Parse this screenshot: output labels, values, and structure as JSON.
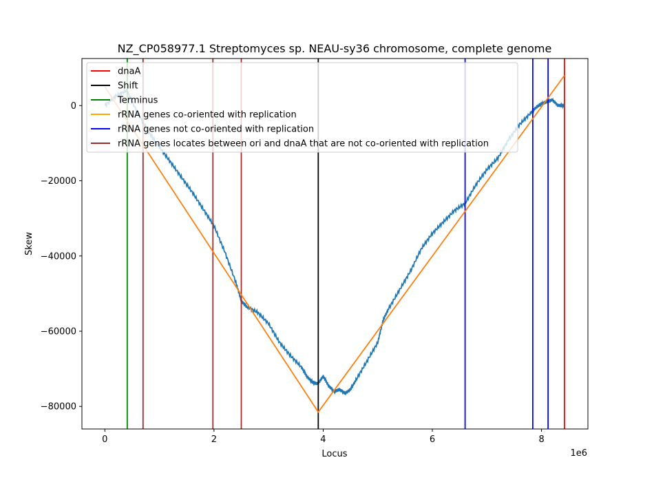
{
  "chart_data": {
    "type": "line",
    "title": "NZ_CP058977.1 Streptomyces sp. NEAU-sy36 chromosome, complete genome",
    "xlabel": "Locus",
    "ylabel": "Skew",
    "x_offset_label": "1e6",
    "xlim": [
      -420000,
      8850000
    ],
    "ylim": [
      -86000,
      12500
    ],
    "x_ticks": [
      0,
      2000000,
      4000000,
      6000000,
      8000000
    ],
    "x_tick_labels": [
      "0",
      "2",
      "4",
      "6",
      "8"
    ],
    "y_ticks": [
      0,
      -20000,
      -40000,
      -60000,
      -80000
    ],
    "y_tick_labels": [
      "0",
      "−20000",
      "−40000",
      "−60000",
      "−80000"
    ],
    "legend_position": "upper-left",
    "legend": [
      {
        "label": "dnaA",
        "color": "#ff0000"
      },
      {
        "label": "Shift",
        "color": "#000000"
      },
      {
        "label": "Terminus",
        "color": "#008000"
      },
      {
        "label": "rRNA genes co-oriented with replication",
        "color": "#ffa500"
      },
      {
        "label": "rRNA genes not co-oriented with replication",
        "color": "#0000ff"
      },
      {
        "label": "rRNA genes locates between ori and dnaA that are not co-oriented with replication",
        "color": "#a52a2a"
      }
    ],
    "skew_series": {
      "color": "#1f77b4",
      "x": [
        0,
        200000,
        400000,
        600000,
        800000,
        1000000,
        1200000,
        1400000,
        1600000,
        1800000,
        2000000,
        2200000,
        2400000,
        2500000,
        2600000,
        2800000,
        3000000,
        3200000,
        3400000,
        3600000,
        3700000,
        3800000,
        3900000,
        4000000,
        4100000,
        4200000,
        4300000,
        4400000,
        4500000,
        4600000,
        4800000,
        5000000,
        5100000,
        5200000,
        5400000,
        5600000,
        5800000,
        6000000,
        6200000,
        6400000,
        6600000,
        6800000,
        7000000,
        7200000,
        7400000,
        7600000,
        7800000,
        7900000,
        8000000,
        8100000,
        8200000,
        8300000,
        8420000
      ],
      "y": [
        0,
        2500,
        4000,
        -2000,
        -7000,
        -11000,
        -15000,
        -19000,
        -23000,
        -27500,
        -32000,
        -39000,
        -47000,
        -52000,
        -53500,
        -55000,
        -58000,
        -63000,
        -66500,
        -69500,
        -72000,
        -73500,
        -74000,
        -72000,
        -74500,
        -76000,
        -75500,
        -76500,
        -75500,
        -73000,
        -68000,
        -63000,
        -57000,
        -54000,
        -49000,
        -44000,
        -38000,
        -34000,
        -31000,
        -28000,
        -26000,
        -21000,
        -17000,
        -14000,
        -9000,
        -5000,
        -2000,
        -500,
        500,
        1000,
        1500,
        0,
        0
      ]
    },
    "fit_series": {
      "color": "#ff7f0e",
      "x": [
        0,
        3910000,
        8420000
      ],
      "y": [
        5000,
        -81500,
        8000
      ]
    },
    "vlines": [
      {
        "x": 8420000,
        "color": "#ff0000",
        "kind": "dnaA"
      },
      {
        "x": 3910000,
        "color": "#000000",
        "kind": "Shift"
      },
      {
        "x": 410000,
        "color": "#008000",
        "kind": "Terminus"
      },
      {
        "x": 6600000,
        "color": "#0000ff",
        "kind": "rRNA not co-oriented"
      },
      {
        "x": 7840000,
        "color": "#0000ff",
        "kind": "rRNA not co-oriented"
      },
      {
        "x": 8120000,
        "color": "#0000ff",
        "kind": "rRNA not co-oriented"
      },
      {
        "x": 700000,
        "color": "#a52a2a",
        "kind": "rRNA between ori and dnaA"
      },
      {
        "x": 1980000,
        "color": "#a52a2a",
        "kind": "rRNA between ori and dnaA"
      },
      {
        "x": 2500000,
        "color": "#a52a2a",
        "kind": "rRNA between ori and dnaA"
      }
    ]
  }
}
